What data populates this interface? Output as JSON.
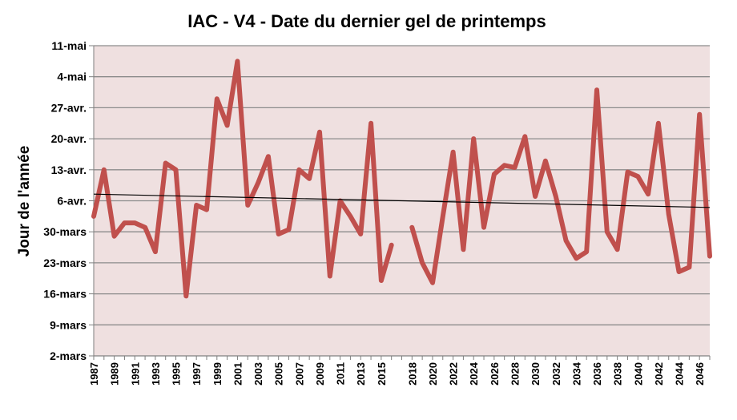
{
  "chart_data": {
    "type": "line",
    "title": "IAC - V4 - Date du dernier gel de printemps",
    "xlabel": "",
    "ylabel": "Jour de l'année",
    "x_tick_labels": [
      "1987",
      "1989",
      "1991",
      "1993",
      "1995",
      "1997",
      "1999",
      "2001",
      "2003",
      "2005",
      "2007",
      "2009",
      "2011",
      "2013",
      "2015",
      "2018",
      "2020",
      "2022",
      "2024",
      "2026",
      "2028",
      "2030",
      "2032",
      "2034",
      "2036",
      "2038",
      "2040",
      "2042",
      "2044",
      "2046"
    ],
    "y_tick_labels": [
      "2-mars",
      "9-mars",
      "16-mars",
      "23-mars",
      "30-mars",
      "6-avr.",
      "13-avr.",
      "20-avr.",
      "27-avr.",
      "4-mai",
      "11-mai"
    ],
    "y_tick_values": [
      61,
      68,
      75,
      82,
      89,
      96,
      103,
      110,
      117,
      124,
      131
    ],
    "ylim": [
      61,
      131
    ],
    "grid": true,
    "background_color": "#efe0e0",
    "series": [
      {
        "color": "#c0504d",
        "points": [
          {
            "x": 1987,
            "y": 92.5
          },
          {
            "x": 1988,
            "y": 103
          },
          {
            "x": 1989,
            "y": 88
          },
          {
            "x": 1990,
            "y": 91
          },
          {
            "x": 1991,
            "y": 91
          },
          {
            "x": 1992,
            "y": 90
          },
          {
            "x": 1993,
            "y": 84.5
          },
          {
            "x": 1994,
            "y": 104.5
          },
          {
            "x": 1995,
            "y": 103
          },
          {
            "x": 1996,
            "y": 74.5
          },
          {
            "x": 1997,
            "y": 95
          },
          {
            "x": 1998,
            "y": 94
          },
          {
            "x": 1999,
            "y": 119
          },
          {
            "x": 2000,
            "y": 113
          },
          {
            "x": 2001,
            "y": 127.5
          },
          {
            "x": 2002,
            "y": 95
          },
          {
            "x": 2003,
            "y": 100
          },
          {
            "x": 2004,
            "y": 106
          },
          {
            "x": 2005,
            "y": 88.5
          },
          {
            "x": 2006,
            "y": 89.5
          },
          {
            "x": 2007,
            "y": 103
          },
          {
            "x": 2008,
            "y": 101
          },
          {
            "x": 2009,
            "y": 111.5
          },
          {
            "x": 2010,
            "y": 79
          },
          {
            "x": 2011,
            "y": 96
          },
          {
            "x": 2012,
            "y": 92.5
          },
          {
            "x": 2013,
            "y": 88.5
          },
          {
            "x": 2014,
            "y": 113.5
          },
          {
            "x": 2015,
            "y": 78
          },
          {
            "x": 2016,
            "y": 86
          },
          {
            "x": 2017,
            "y": null
          },
          {
            "x": 2018,
            "y": 90
          },
          {
            "x": 2019,
            "y": 82
          },
          {
            "x": 2020,
            "y": 77.5
          },
          {
            "x": 2021,
            "y": 92.5
          },
          {
            "x": 2022,
            "y": 107
          },
          {
            "x": 2023,
            "y": 85
          },
          {
            "x": 2024,
            "y": 110
          },
          {
            "x": 2025,
            "y": 90
          },
          {
            "x": 2026,
            "y": 102
          },
          {
            "x": 2027,
            "y": 104
          },
          {
            "x": 2028,
            "y": 103.5
          },
          {
            "x": 2029,
            "y": 110.5
          },
          {
            "x": 2030,
            "y": 97
          },
          {
            "x": 2031,
            "y": 105
          },
          {
            "x": 2032,
            "y": 97
          },
          {
            "x": 2033,
            "y": 87
          },
          {
            "x": 2034,
            "y": 83
          },
          {
            "x": 2035,
            "y": 84.5
          },
          {
            "x": 2036,
            "y": 121
          },
          {
            "x": 2037,
            "y": 89
          },
          {
            "x": 2038,
            "y": 85
          },
          {
            "x": 2039,
            "y": 102.5
          },
          {
            "x": 2040,
            "y": 101.5
          },
          {
            "x": 2041,
            "y": 97.5
          },
          {
            "x": 2042,
            "y": 113.5
          },
          {
            "x": 2043,
            "y": 93
          },
          {
            "x": 2044,
            "y": 80
          },
          {
            "x": 2045,
            "y": 81
          },
          {
            "x": 2046,
            "y": 115.5
          },
          {
            "x": 2047,
            "y": 83.5
          }
        ]
      },
      {
        "type": "trendline",
        "color": "#000000",
        "points": [
          {
            "x": 1987,
            "y": 97.5
          },
          {
            "x": 2047,
            "y": 94.5
          }
        ]
      }
    ]
  }
}
